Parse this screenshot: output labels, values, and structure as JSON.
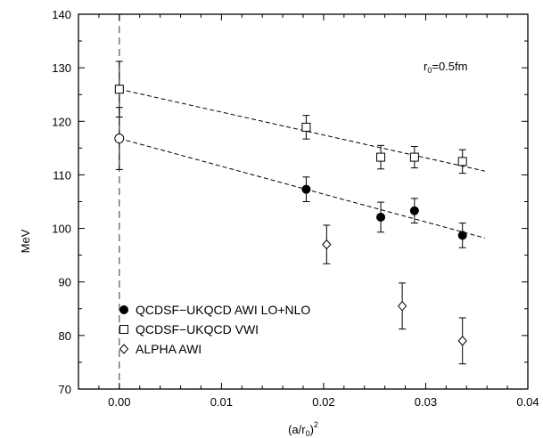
{
  "chart_data": {
    "type": "scatter",
    "xlabel_main": "(a/r",
    "xlabel_sub": "0",
    "xlabel_tail": ")",
    "xlabel_sup": "2",
    "ylabel": "MeV",
    "xlim": [
      -0.004,
      0.04
    ],
    "ylim": [
      70,
      140
    ],
    "xticks": [
      0.0,
      0.01,
      0.02,
      0.03,
      0.04
    ],
    "xtick_labels": [
      "0.00",
      "0.01",
      "0.02",
      "0.03",
      "0.04"
    ],
    "yticks": [
      70,
      80,
      90,
      100,
      110,
      120,
      130,
      140
    ],
    "ytick_labels": [
      "70",
      "80",
      "90",
      "100",
      "110",
      "120",
      "130",
      "140"
    ],
    "annotation_main": "r",
    "annotation_sub": "0",
    "annotation_tail": "=0.5fm",
    "legend_position": "bottom-left",
    "series": [
      {
        "name": "QCDSF−UKQCD AWI LO+NLO",
        "marker": "filled-circle",
        "points": [
          {
            "x": 0.0183,
            "y": 107.3,
            "err": 2.3
          },
          {
            "x": 0.0256,
            "y": 102.1,
            "err": 2.8
          },
          {
            "x": 0.0289,
            "y": 103.3,
            "err": 2.3
          },
          {
            "x": 0.0336,
            "y": 98.7,
            "err": 2.3
          }
        ],
        "extrapolation": {
          "x": 0.0,
          "y": 116.8,
          "err": 5.8
        },
        "fit_line": {
          "x": [
            0.0,
            0.0358
          ],
          "y": [
            116.8,
            98.2
          ]
        }
      },
      {
        "name": "QCDSF−UKQCD VWI",
        "marker": "open-square",
        "points": [
          {
            "x": 0.0183,
            "y": 118.9,
            "err": 2.2
          },
          {
            "x": 0.0256,
            "y": 113.3,
            "err": 2.2
          },
          {
            "x": 0.0289,
            "y": 113.3,
            "err": 2.0
          },
          {
            "x": 0.0336,
            "y": 112.5,
            "err": 2.2
          }
        ],
        "extrapolation": {
          "x": 0.0,
          "y": 126.0,
          "err": 5.2
        },
        "fit_line": {
          "x": [
            0.0,
            0.0358
          ],
          "y": [
            126.0,
            110.7
          ]
        }
      },
      {
        "name": "ALPHA AWI",
        "marker": "open-diamond",
        "points": [
          {
            "x": 0.0203,
            "y": 97.0,
            "err": 3.6
          },
          {
            "x": 0.0277,
            "y": 85.5,
            "err": 4.3
          },
          {
            "x": 0.0336,
            "y": 79.0,
            "err": 4.3
          }
        ]
      }
    ],
    "vertical_dashed_line_x": 0.0
  }
}
